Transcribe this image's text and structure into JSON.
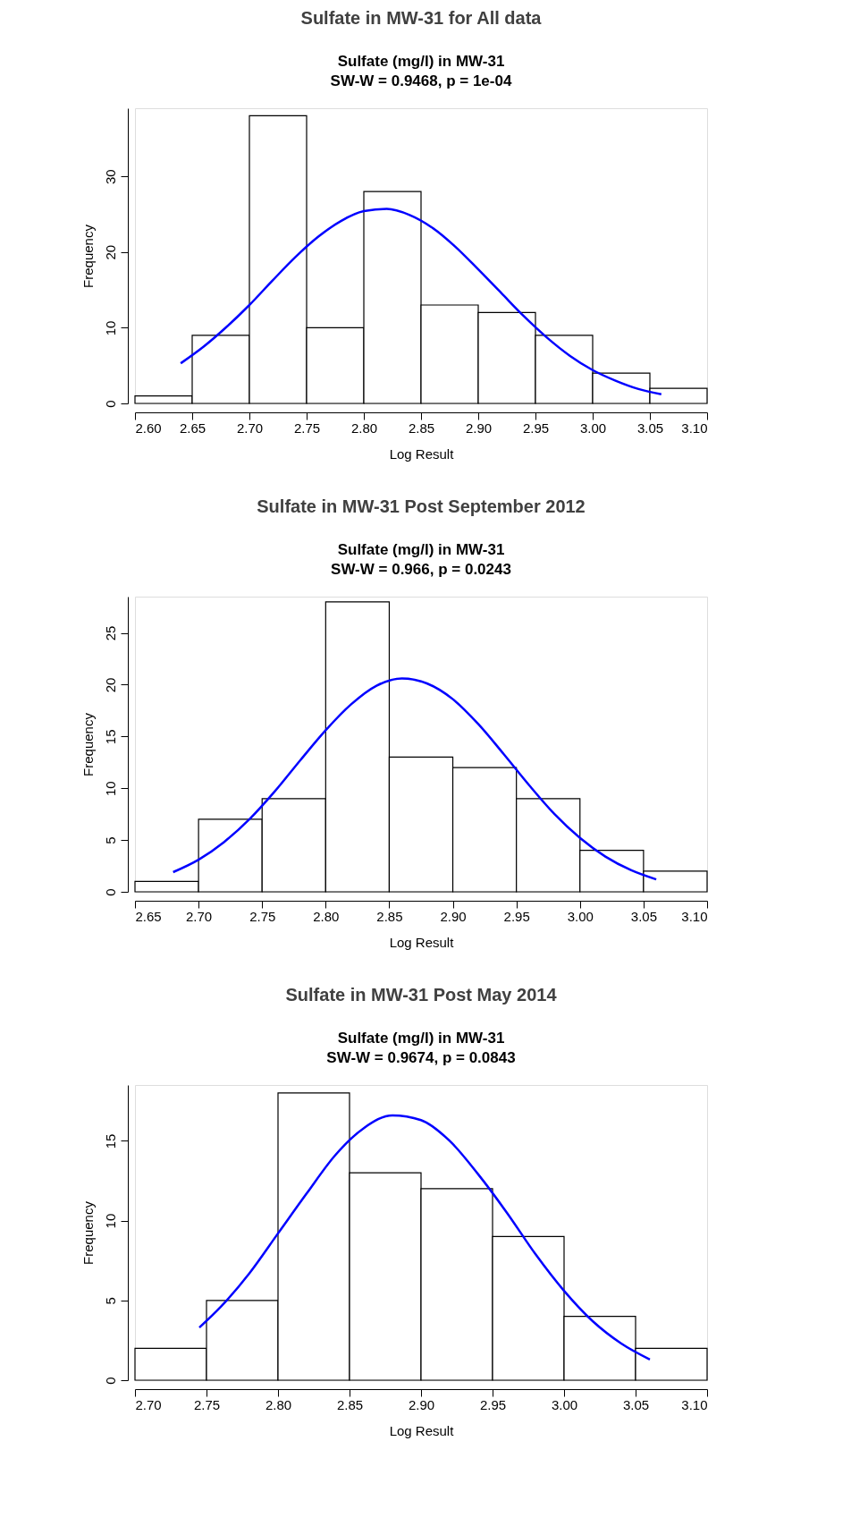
{
  "chart_data": [
    {
      "type": "histogram",
      "title": "Sulfate in MW-31 for All data",
      "subtitle": "Sulfate (mg/l) in MW-31",
      "annotations": [
        "SW-W = 0.9468, p = 1e-04"
      ],
      "xlabel": "Log Result",
      "ylabel": "Frequency",
      "bins": [
        2.6,
        2.65,
        2.7,
        2.75,
        2.8,
        2.85,
        2.9,
        2.95,
        3.0,
        3.05,
        3.1
      ],
      "series": [
        {
          "color": "#ffffff",
          "values": [
            1,
            9,
            38,
            10,
            28,
            13,
            12,
            9,
            4,
            2
          ]
        },
        {
          "type": "line",
          "color": "#0000ff",
          "x": [
            2.64,
            2.66,
            2.68,
            2.7,
            2.72,
            2.74,
            2.76,
            2.78,
            2.8,
            2.82,
            2.84,
            2.86,
            2.88,
            2.9,
            2.92,
            2.94,
            2.96,
            2.98,
            3.0,
            3.02,
            3.04,
            3.06
          ],
          "values": [
            5.3,
            7.5,
            10.1,
            13.0,
            16.2,
            19.3,
            22.0,
            24.1,
            25.4,
            25.7,
            24.9,
            23.2,
            20.7,
            17.7,
            14.6,
            11.5,
            8.7,
            6.3,
            4.4,
            3.0,
            1.9,
            1.2
          ]
        }
      ],
      "xlim": [
        2.6,
        3.1
      ],
      "xticks": [
        {
          "value": 2.6,
          "label": "2.60"
        },
        {
          "value": 2.65,
          "label": "2.65"
        },
        {
          "value": 2.7,
          "label": "2.70"
        },
        {
          "value": 2.75,
          "label": "2.75"
        },
        {
          "value": 2.8,
          "label": "2.80"
        },
        {
          "value": 2.85,
          "label": "2.85"
        },
        {
          "value": 2.9,
          "label": "2.90"
        },
        {
          "value": 2.95,
          "label": "2.95"
        },
        {
          "value": 3.0,
          "label": "3.00"
        },
        {
          "value": 3.05,
          "label": "3.05"
        },
        {
          "value": 3.1,
          "label": "3.10"
        }
      ],
      "ylim": [
        0,
        39
      ],
      "yticks": [
        0,
        10,
        20,
        30
      ],
      "grid": false
    },
    {
      "type": "histogram",
      "title": "Sulfate in MW-31 Post September 2012",
      "subtitle": "Sulfate (mg/l) in MW-31",
      "annotations": [
        "SW-W = 0.966, p = 0.0243"
      ],
      "xlabel": "Log Result",
      "ylabel": "Frequency",
      "bins": [
        2.65,
        2.7,
        2.75,
        2.8,
        2.85,
        2.9,
        2.95,
        3.0,
        3.05,
        3.1
      ],
      "series": [
        {
          "color": "#ffffff",
          "values": [
            1,
            7,
            9,
            28,
            13,
            12,
            9,
            4,
            2
          ]
        },
        {
          "type": "line",
          "color": "#0000ff",
          "x": [
            2.68,
            2.7,
            2.72,
            2.74,
            2.76,
            2.78,
            2.8,
            2.82,
            2.84,
            2.86,
            2.88,
            2.9,
            2.92,
            2.94,
            2.96,
            2.98,
            3.0,
            3.02,
            3.04,
            3.06
          ],
          "values": [
            1.9,
            3.1,
            4.8,
            7.0,
            9.7,
            12.7,
            15.6,
            18.1,
            19.9,
            20.6,
            20.1,
            18.6,
            16.2,
            13.3,
            10.3,
            7.5,
            5.2,
            3.4,
            2.1,
            1.2
          ]
        }
      ],
      "xlim": [
        2.65,
        3.1
      ],
      "xticks": [
        {
          "value": 2.65,
          "label": "2.65"
        },
        {
          "value": 2.7,
          "label": "2.70"
        },
        {
          "value": 2.75,
          "label": "2.75"
        },
        {
          "value": 2.8,
          "label": "2.80"
        },
        {
          "value": 2.85,
          "label": "2.85"
        },
        {
          "value": 2.9,
          "label": "2.90"
        },
        {
          "value": 2.95,
          "label": "2.95"
        },
        {
          "value": 3.0,
          "label": "3.00"
        },
        {
          "value": 3.05,
          "label": "3.05"
        },
        {
          "value": 3.1,
          "label": "3.10"
        }
      ],
      "ylim": [
        0,
        28.5
      ],
      "yticks": [
        0,
        5,
        10,
        15,
        20,
        25
      ],
      "grid": false
    },
    {
      "type": "histogram",
      "title": "Sulfate in MW-31 Post May 2014",
      "subtitle": "Sulfate (mg/l) in MW-31",
      "annotations": [
        "SW-W = 0.9674, p = 0.0843"
      ],
      "xlabel": "Log Result",
      "ylabel": "Frequency",
      "bins": [
        2.7,
        2.75,
        2.8,
        2.85,
        2.9,
        2.95,
        3.0,
        3.05,
        3.1
      ],
      "series": [
        {
          "color": "#ffffff",
          "values": [
            2,
            5,
            18,
            13,
            12,
            9,
            4,
            2
          ]
        },
        {
          "type": "line",
          "color": "#0000ff",
          "x": [
            2.745,
            2.76,
            2.78,
            2.8,
            2.82,
            2.84,
            2.86,
            2.88,
            2.9,
            2.92,
            2.94,
            2.96,
            2.98,
            3.0,
            3.02,
            3.04,
            3.06
          ],
          "values": [
            3.3,
            4.6,
            6.7,
            9.2,
            11.7,
            14.1,
            15.8,
            16.6,
            16.3,
            15.0,
            12.9,
            10.5,
            7.9,
            5.6,
            3.7,
            2.3,
            1.3
          ]
        }
      ],
      "xlim": [
        2.7,
        3.1
      ],
      "xticks": [
        {
          "value": 2.7,
          "label": "2.70"
        },
        {
          "value": 2.75,
          "label": "2.75"
        },
        {
          "value": 2.8,
          "label": "2.80"
        },
        {
          "value": 2.85,
          "label": "2.85"
        },
        {
          "value": 2.9,
          "label": "2.90"
        },
        {
          "value": 2.95,
          "label": "2.95"
        },
        {
          "value": 3.0,
          "label": "3.00"
        },
        {
          "value": 3.05,
          "label": "3.05"
        },
        {
          "value": 3.1,
          "label": "3.10"
        }
      ],
      "ylim": [
        0,
        18.5
      ],
      "yticks": [
        0,
        5,
        10,
        15
      ],
      "grid": false
    }
  ]
}
